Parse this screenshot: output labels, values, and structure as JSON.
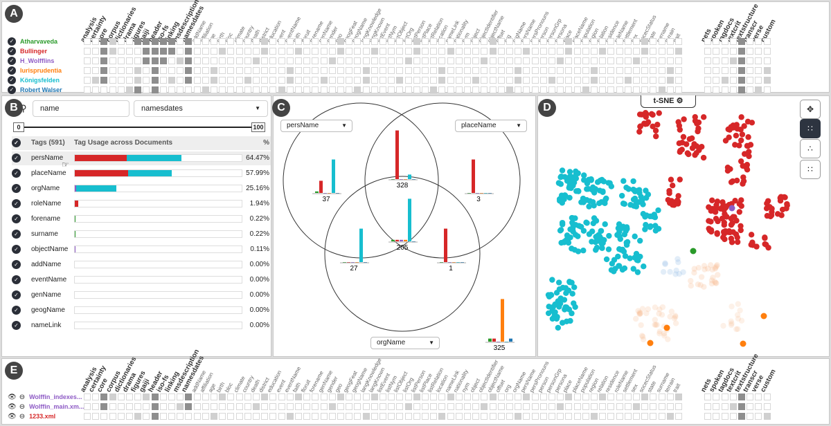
{
  "panel_labels": {
    "a": "A",
    "b": "B",
    "c": "C",
    "d": "D",
    "e": "E"
  },
  "columns": [
    "analysis",
    "certainty",
    "core",
    "corpus",
    "dictionaries",
    "drama",
    "figures",
    "gaiji",
    "header",
    "iso-fs",
    "linking",
    "msdescription",
    "namesdates",
    "addName",
    "affiliation",
    "age",
    "birth",
    "bloc",
    "climate",
    "country",
    "death",
    "district",
    "education",
    "event",
    "eventName",
    "faith",
    "floruit",
    "forename",
    "genName",
    "gender",
    "geo",
    "geogFeat",
    "geogName",
    "langKnowledge",
    "langKnown",
    "listEvent",
    "listNym",
    "listObject",
    "listOrg",
    "listPerson",
    "listPlace",
    "listRelation",
    "location",
    "nameLink",
    "nationality",
    "nym",
    "object",
    "objectIdentifier",
    "objectName",
    "offset",
    "org",
    "orgName",
    "persName",
    "persPronouns",
    "person",
    "personGrp",
    "persona",
    "place",
    "placeName",
    "population",
    "region",
    "relation",
    "residence",
    "roleName",
    "settlement",
    "sex",
    "socecStatus",
    "state",
    "surname",
    "terrain",
    "trait",
    "nets",
    "spoken",
    "tagdocs",
    "textcrit",
    "textstructure",
    "transcr",
    "verse",
    "custom"
  ],
  "major_columns": [
    "analysis",
    "certainty",
    "core",
    "corpus",
    "dictionaries",
    "drama",
    "figures",
    "gaiji",
    "header",
    "iso-fs",
    "linking",
    "msdescription",
    "namesdates",
    "nets",
    "spoken",
    "tagdocs",
    "textcrit",
    "textstructure",
    "transcr",
    "verse",
    "custom"
  ],
  "panel_a": {
    "rows": [
      {
        "name": "Atharvaveda",
        "color": "#2a9a2a"
      },
      {
        "name": "Bullinger",
        "color": "#d62728"
      },
      {
        "name": "H_Wolfflins",
        "color": "#8e5bc5"
      },
      {
        "name": "Iurisprudentia",
        "color": "#ff7f0e"
      },
      {
        "name": "Königsfelden",
        "color": "#17becf"
      },
      {
        "name": "Robert Walser",
        "color": "#1f77b4"
      }
    ]
  },
  "panel_b": {
    "search_value": "name",
    "module_select": "namesdates",
    "slider_min": "0",
    "slider_max": "100",
    "header_tags": "Tags (591)",
    "header_usage": "Tag Usage across Documents",
    "header_pct": "%",
    "tags": [
      {
        "name": "persName",
        "pct": "64.47%",
        "segs": [
          [
            "#d62728",
            31
          ],
          [
            "#17becf",
            33
          ]
        ]
      },
      {
        "name": "placeName",
        "pct": "57.99%",
        "segs": [
          [
            "#d62728",
            32
          ],
          [
            "#17becf",
            26
          ]
        ]
      },
      {
        "name": "orgName",
        "pct": "25.16%",
        "segs": [
          [
            "#8e5bc5",
            1
          ],
          [
            "#17becf",
            24
          ]
        ]
      },
      {
        "name": "roleName",
        "pct": "1.94%",
        "segs": [
          [
            "#d62728",
            2
          ]
        ]
      },
      {
        "name": "forename",
        "pct": "0.22%",
        "segs": [
          [
            "#2a9a2a",
            0.4
          ]
        ]
      },
      {
        "name": "surname",
        "pct": "0.22%",
        "segs": [
          [
            "#2a9a2a",
            0.4
          ]
        ]
      },
      {
        "name": "objectName",
        "pct": "0.11%",
        "segs": [
          [
            "#8e5bc5",
            0.3
          ]
        ]
      },
      {
        "name": "addName",
        "pct": "0.00%",
        "segs": []
      },
      {
        "name": "eventName",
        "pct": "0.00%",
        "segs": []
      },
      {
        "name": "genName",
        "pct": "0.00%",
        "segs": []
      },
      {
        "name": "geogName",
        "pct": "0.00%",
        "segs": []
      },
      {
        "name": "nameLink",
        "pct": "0.00%",
        "segs": []
      }
    ]
  },
  "panel_c": {
    "set1": "persName",
    "set2": "placeName",
    "set3": "orgName",
    "regions": [
      {
        "label": "37",
        "bars": [
          1,
          8,
          0,
          0,
          22,
          0
        ]
      },
      {
        "label": "328",
        "bars": [
          0,
          32,
          0,
          0,
          3,
          0
        ]
      },
      {
        "label": "3",
        "bars": [
          0,
          22,
          0,
          0,
          0,
          0
        ]
      },
      {
        "label": "205",
        "bars": [
          1,
          1,
          1,
          1,
          28,
          0
        ]
      },
      {
        "label": "27",
        "bars": [
          0,
          0,
          0,
          0,
          22,
          0
        ]
      },
      {
        "label": "1",
        "bars": [
          0,
          22,
          0,
          0,
          0,
          0
        ]
      },
      {
        "label": "325",
        "bars": [
          2,
          2,
          0,
          28,
          0,
          2
        ]
      }
    ],
    "bar_colors": [
      "#2a9a2a",
      "#d62728",
      "#8e5bc5",
      "#ff7f0e",
      "#17becf",
      "#1f77b4"
    ]
  },
  "panel_d": {
    "title": "t-SNE",
    "views": [
      "layout-icon",
      "scatter-dense-icon",
      "scatter-sparse-icon",
      "grid-icon"
    ]
  },
  "panel_e": {
    "rows": [
      {
        "name": "Wolffin_indexes...",
        "color": "#8e5bc5"
      },
      {
        "name": "Wolffin_main.xm...",
        "color": "#8e5bc5"
      },
      {
        "name": "1233.xml",
        "color": "#d62728"
      }
    ]
  },
  "colors": {
    "dark": "#2d3440",
    "red": "#d62728",
    "teal": "#17becf",
    "orange": "#ff7f0e"
  }
}
